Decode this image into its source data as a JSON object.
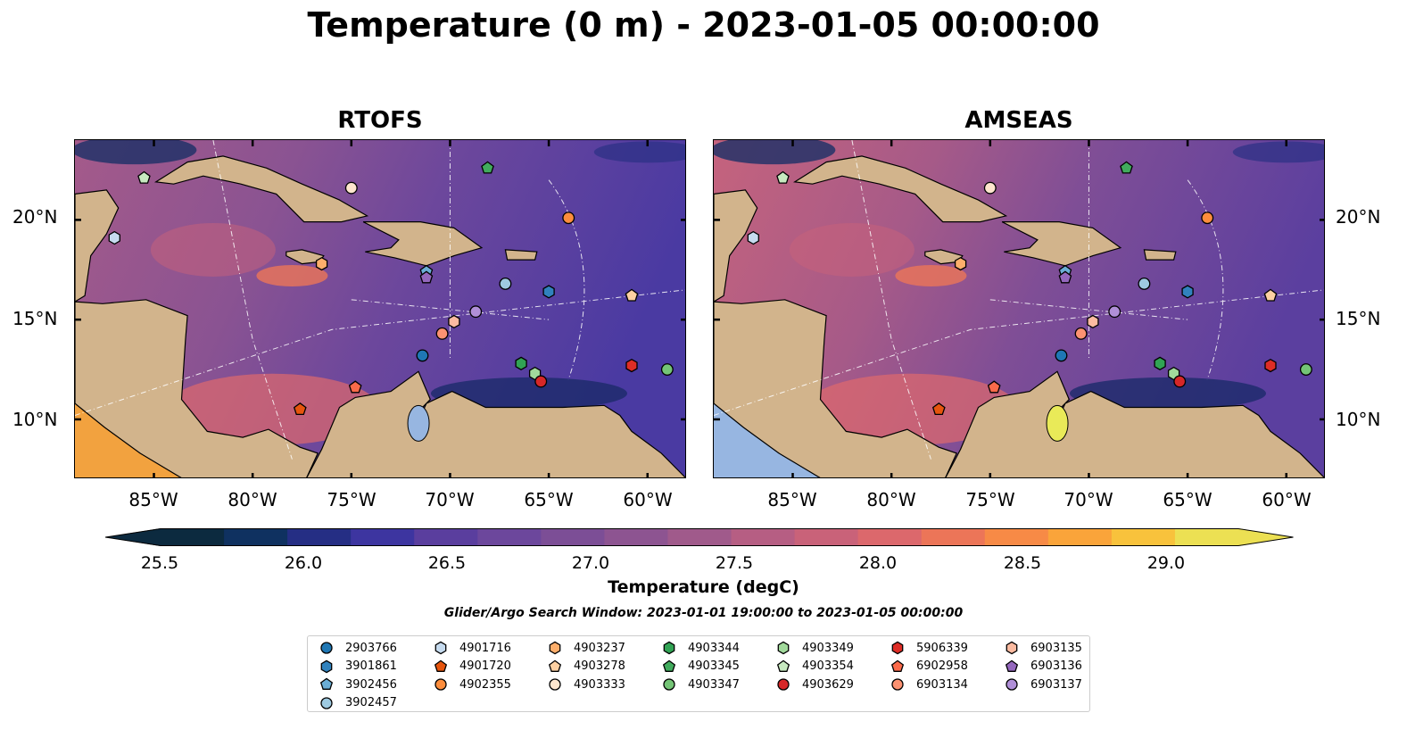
{
  "title": "Temperature (0 m) - 2023-01-05 00:00:00",
  "panels": [
    {
      "title": "RTOFS",
      "variant": "rtofs"
    },
    {
      "title": "AMSEAS",
      "variant": "amseas"
    }
  ],
  "map": {
    "lon_range": [
      -89,
      -58
    ],
    "lat_range": [
      7,
      24
    ],
    "lat_ticks": [
      "20°N",
      "15°N",
      "10°N"
    ],
    "lon_ticks": [
      "85°W",
      "80°W",
      "75°W",
      "70°W",
      "65°W",
      "60°W"
    ],
    "land_color": "#d2b48c",
    "water_color": "#97b6e1"
  },
  "colorbar": {
    "label": "Temperature (degC)",
    "min": 25.25,
    "max": 29.25,
    "ticks": [
      "25.5",
      "26.0",
      "26.5",
      "27.0",
      "27.5",
      "28.0",
      "28.5",
      "29.0"
    ],
    "colors": [
      "#0c2a3f",
      "#0f3160",
      "#252e84",
      "#3d35a0",
      "#5a3e9e",
      "#6c479c",
      "#7c4e96",
      "#8d5491",
      "#a05a8b",
      "#b65e83",
      "#c96279",
      "#dc686c",
      "#ec7558",
      "#f78a46",
      "#faa43a",
      "#f8c23c",
      "#ece053"
    ]
  },
  "search_window": "Glider/Argo Search Window: 2023-01-01 19:00:00 to 2023-01-05 00:00:00",
  "floats": [
    {
      "id": "2903766",
      "marker": "circle",
      "color": "#1f77b4",
      "lon": -71.4,
      "lat": 13.2
    },
    {
      "id": "3901861",
      "marker": "hexagon",
      "color": "#3182bd",
      "lon": -65.0,
      "lat": 16.4
    },
    {
      "id": "3902456",
      "marker": "pentagon",
      "color": "#6baed6",
      "lon": -71.2,
      "lat": 17.4
    },
    {
      "id": "3902457",
      "marker": "circle",
      "color": "#9ecae1",
      "lon": -67.2,
      "lat": 16.8
    },
    {
      "id": "4901716",
      "marker": "hexagon",
      "color": "#c6dbef",
      "lon": -87.0,
      "lat": 19.1
    },
    {
      "id": "4901720",
      "marker": "pentagon",
      "color": "#e6550d",
      "lon": -77.6,
      "lat": 10.5
    },
    {
      "id": "4902355",
      "marker": "circle",
      "color": "#fd8d3c",
      "lon": -64.0,
      "lat": 20.1
    },
    {
      "id": "4903237",
      "marker": "hexagon",
      "color": "#fdae6b",
      "lon": -76.5,
      "lat": 17.8
    },
    {
      "id": "4903278",
      "marker": "pentagon",
      "color": "#fdd0a2",
      "lon": -60.8,
      "lat": 16.2
    },
    {
      "id": "4903333",
      "marker": "circle",
      "color": "#fee6ce",
      "lon": -75.0,
      "lat": 21.6
    },
    {
      "id": "4903344",
      "marker": "hexagon",
      "color": "#31a354",
      "lon": -66.4,
      "lat": 12.8
    },
    {
      "id": "4903345",
      "marker": "pentagon",
      "color": "#41ab5d",
      "lon": -68.1,
      "lat": 22.6
    },
    {
      "id": "4903347",
      "marker": "circle",
      "color": "#74c476",
      "lon": -59.0,
      "lat": 12.5
    },
    {
      "id": "4903349",
      "marker": "hexagon",
      "color": "#a1d99b",
      "lon": -65.7,
      "lat": 12.3
    },
    {
      "id": "4903354",
      "marker": "pentagon",
      "color": "#c7e9c0",
      "lon": -85.5,
      "lat": 22.1
    },
    {
      "id": "4903629",
      "marker": "circle",
      "color": "#d62728",
      "lon": -65.4,
      "lat": 11.9
    },
    {
      "id": "5906339",
      "marker": "hexagon",
      "color": "#de2d26",
      "lon": -60.8,
      "lat": 12.7
    },
    {
      "id": "6902958",
      "marker": "pentagon",
      "color": "#fb6a4a",
      "lon": -74.8,
      "lat": 11.6
    },
    {
      "id": "6903134",
      "marker": "circle",
      "color": "#fc9272",
      "lon": -70.4,
      "lat": 14.3
    },
    {
      "id": "6903135",
      "marker": "hexagon",
      "color": "#fcbba1",
      "lon": -69.8,
      "lat": 14.9
    },
    {
      "id": "6903136",
      "marker": "pentagon",
      "color": "#9467bd",
      "lon": -71.2,
      "lat": 17.1
    },
    {
      "id": "6903137",
      "marker": "circle",
      "color": "#b08fd8",
      "lon": -68.7,
      "lat": 15.4
    }
  ]
}
